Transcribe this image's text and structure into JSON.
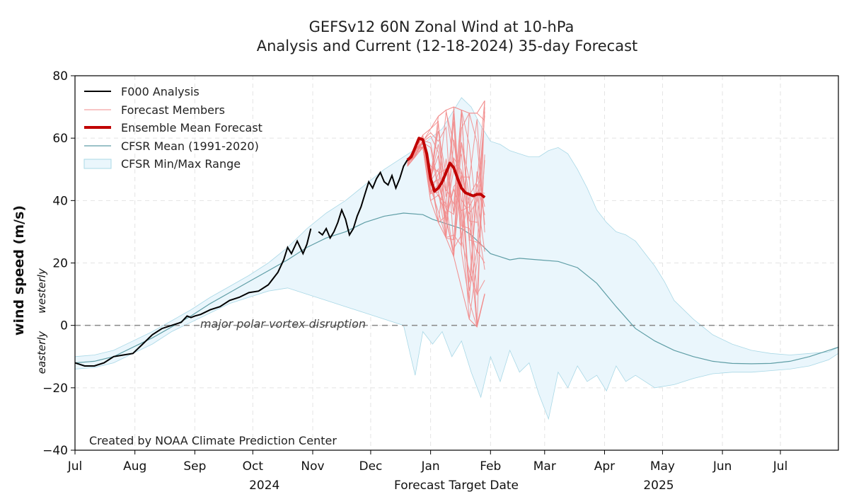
{
  "chart_data": {
    "type": "line",
    "title": "GEFSv12 60N Zonal Wind at 10-hPa",
    "subtitle": "Analysis and Current (12-18-2024) 35-day Forecast",
    "xlabel": "Forecast Target Date",
    "ylabel": "wind speed (m/s)",
    "ylabel_westerly": "westerly",
    "ylabel_easterly": "easterly",
    "ylim": [
      -40,
      80
    ],
    "yticks": [
      -40,
      -20,
      0,
      20,
      40,
      60,
      80
    ],
    "ytick_labels": [
      "−40",
      "−20",
      "0",
      "20",
      "40",
      "60",
      "80"
    ],
    "xlim_days": [
      0,
      395
    ],
    "months": [
      {
        "label": "Jul",
        "day": 0
      },
      {
        "label": "Aug",
        "day": 31
      },
      {
        "label": "Sep",
        "day": 62
      },
      {
        "label": "Oct",
        "day": 92
      },
      {
        "label": "Nov",
        "day": 123
      },
      {
        "label": "Dec",
        "day": 153
      },
      {
        "label": "Jan",
        "day": 184
      },
      {
        "label": "Feb",
        "day": 215
      },
      {
        "label": "Mar",
        "day": 243
      },
      {
        "label": "Apr",
        "day": 274
      },
      {
        "label": "May",
        "day": 304
      },
      {
        "label": "Jun",
        "day": 335
      },
      {
        "label": "Jul",
        "day": 365
      }
    ],
    "year_labels": [
      {
        "label": "2024",
        "day": 98
      },
      {
        "label": "2025",
        "day": 302
      }
    ],
    "zero_line_annotation": "major polar vortex disruption",
    "credit": "Created by NOAA Climate Prediction Center",
    "legend": {
      "analysis": "F000 Analysis",
      "members": "Forecast Members",
      "mean": "Ensemble Mean Forecast",
      "cfsr_mean": "CFSR Mean (1991-2020)",
      "cfsr_range": "CFSR Min/Max Range"
    },
    "colors": {
      "analysis": "#000000",
      "members": "#f28b8b",
      "mean": "#c00000",
      "cfsr_mean": "#5f9ea6",
      "range_fill": "#eaf6fc",
      "range_edge": "#a9d8e6",
      "zero_line": "#888888",
      "grid": "#e4e4e4"
    },
    "series": [
      {
        "name": "F000 Analysis",
        "x": [
          0,
          5,
          10,
          15,
          20,
          25,
          30,
          35,
          40,
          45,
          50,
          55,
          58,
          60,
          62,
          65,
          70,
          75,
          80,
          85,
          90,
          95,
          100,
          105,
          108,
          110,
          112,
          115,
          118,
          120,
          122,
          124,
          126
        ],
        "y": [
          -12,
          -13,
          -13,
          -12,
          -10,
          -9.5,
          -9,
          -6,
          -3,
          -1,
          0,
          1,
          3,
          2.5,
          3,
          3.5,
          5,
          6,
          8,
          9,
          10.5,
          11,
          13,
          17,
          21,
          25,
          23,
          27,
          23,
          26,
          31,
          null,
          null
        ]
      },
      {
        "name": "F000 Analysis (cont.)",
        "x": [
          126,
          128,
          130,
          132,
          134,
          136,
          138,
          140,
          142,
          144,
          146,
          148,
          150,
          152,
          154,
          156,
          158,
          160,
          162,
          164,
          166,
          168,
          170,
          172
        ],
        "y": [
          30,
          29,
          31,
          28,
          30,
          33,
          37,
          34,
          29,
          31,
          35,
          38,
          42,
          46,
          44,
          47,
          49,
          46,
          45,
          48,
          44,
          47,
          51,
          53
        ]
      },
      {
        "name": "Ensemble Mean Forecast",
        "x": [
          172,
          174,
          176,
          178,
          180,
          182,
          184,
          186,
          188,
          190,
          192,
          194,
          196,
          198,
          200,
          202,
          204,
          206,
          208,
          210,
          212
        ],
        "y": [
          53,
          54,
          57,
          60,
          59.5,
          55,
          47,
          43,
          44,
          46,
          49,
          52,
          50.5,
          47,
          44,
          42.5,
          42,
          41.5,
          42,
          42,
          41
        ]
      },
      {
        "name": "CFSR Mean (1991-2020)",
        "x": [
          0,
          10,
          20,
          30,
          40,
          50,
          60,
          70,
          80,
          90,
          100,
          110,
          120,
          130,
          140,
          150,
          160,
          170,
          180,
          185,
          190,
          195,
          200,
          205,
          210,
          215,
          220,
          225,
          230,
          240,
          250,
          260,
          270,
          280,
          290,
          300,
          310,
          320,
          330,
          340,
          350,
          360,
          370,
          380,
          390,
          395
        ],
        "y": [
          -12,
          -11.5,
          -10,
          -7,
          -4,
          -0.5,
          3,
          7,
          10.5,
          14,
          17.5,
          21,
          25,
          28,
          30,
          33,
          35,
          36,
          35.5,
          34,
          33,
          32,
          31,
          29,
          26,
          23,
          22,
          21,
          21.5,
          21,
          20.5,
          18.5,
          13.5,
          6,
          -1,
          -5,
          -8,
          -10,
          -11.5,
          -12.2,
          -12.3,
          -12.2,
          -11.5,
          -10,
          -8,
          -7
        ]
      },
      {
        "name": "CFSR Min",
        "x": [
          0,
          10,
          20,
          30,
          40,
          50,
          60,
          70,
          80,
          90,
          100,
          110,
          120,
          130,
          140,
          150,
          160,
          170,
          176,
          180,
          185,
          190,
          195,
          200,
          205,
          210,
          215,
          220,
          225,
          230,
          235,
          240,
          245,
          250,
          255,
          260,
          265,
          270,
          275,
          280,
          285,
          290,
          300,
          310,
          320,
          330,
          340,
          350,
          360,
          370,
          380,
          390,
          395
        ],
        "y": [
          -14,
          -13.5,
          -12,
          -9,
          -6,
          -2,
          1,
          4,
          7,
          9,
          11,
          12,
          10,
          8,
          6,
          4,
          2,
          0,
          -16,
          -2,
          -6,
          -2,
          -10,
          -5,
          -15,
          -23,
          -10,
          -18,
          -8,
          -15,
          -12,
          -22,
          -30,
          -15,
          -20,
          -13,
          -18,
          -16,
          -21,
          -13,
          -18,
          -16,
          -20,
          -19,
          -17,
          -15.5,
          -15,
          -15,
          -14.5,
          -14,
          -13,
          -11,
          -9
        ]
      },
      {
        "name": "CFSR Max",
        "x": [
          0,
          10,
          20,
          30,
          40,
          50,
          60,
          70,
          80,
          90,
          100,
          110,
          120,
          130,
          140,
          150,
          160,
          170,
          180,
          190,
          195,
          200,
          205,
          210,
          215,
          220,
          225,
          230,
          235,
          240,
          245,
          250,
          255,
          260,
          265,
          270,
          275,
          280,
          285,
          290,
          295,
          300,
          305,
          310,
          320,
          330,
          340,
          350,
          360,
          370,
          380,
          390,
          395
        ],
        "y": [
          -10,
          -9.5,
          -8,
          -5,
          -2,
          1.5,
          5,
          9,
          12.5,
          16,
          20,
          25,
          31,
          36,
          40,
          45,
          50,
          54,
          58,
          63,
          68,
          73,
          70,
          64,
          59,
          58,
          56,
          55,
          54,
          54,
          56,
          57,
          55,
          50,
          44,
          37,
          33,
          30,
          29,
          27,
          23,
          19,
          14,
          8,
          2,
          -3,
          -6,
          -8,
          -9,
          -9.5,
          -9,
          -8.5,
          -7
        ]
      }
    ],
    "members_spread": {
      "x": [
        172,
        176,
        180,
        184,
        188,
        192,
        196,
        200,
        204,
        208,
        212
      ],
      "min": [
        51,
        54,
        57,
        40,
        33,
        28,
        22,
        12,
        2,
        -0.5,
        10
      ],
      "max": [
        53,
        57,
        61,
        63,
        67,
        69,
        70,
        69,
        68,
        68,
        72
      ]
    }
  }
}
